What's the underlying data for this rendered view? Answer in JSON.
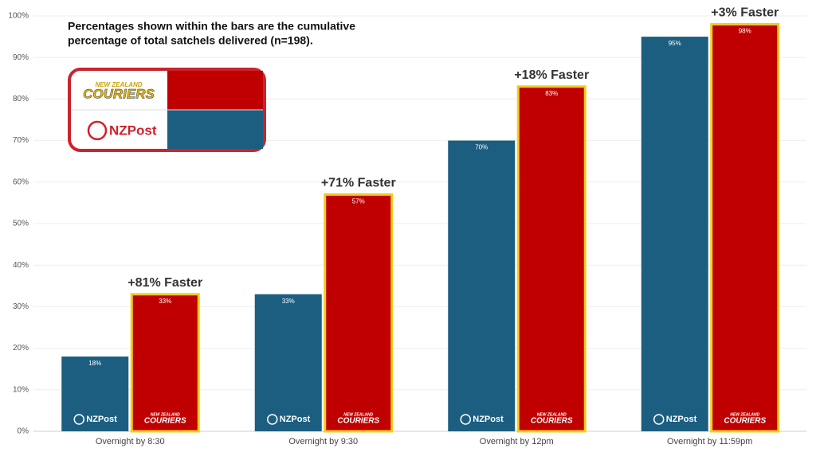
{
  "chart_data": {
    "type": "bar",
    "note": [
      "Percentages shown within the bars are the cumulative",
      "percentage of total satchels delivered (n=198)."
    ],
    "logo_tagline": "NEW ZEALAND",
    "categories": [
      "Overnight by 8:30",
      "Overnight by 9:30",
      "Overnight by 12pm",
      "Overnight by 11:59pm"
    ],
    "series": [
      {
        "name": "NZPost",
        "color": "#1b5e80",
        "values": [
          18,
          33,
          70,
          95
        ],
        "value_labels": [
          "18%",
          "33%",
          "70%",
          "95%"
        ]
      },
      {
        "name": "COURIERS",
        "color": "#c00000",
        "values": [
          33,
          57,
          83,
          98
        ],
        "value_labels": [
          "33%",
          "57%",
          "83%",
          "98%"
        ]
      }
    ],
    "annotations": [
      "+81% Faster",
      "+71% Faster",
      "+18% Faster",
      "+3% Faster"
    ],
    "ylim": [
      0,
      100
    ],
    "yticks": [
      {
        "value": 0,
        "label": "0%"
      },
      {
        "value": 10,
        "label": "10%"
      },
      {
        "value": 20,
        "label": "20%"
      },
      {
        "value": 30,
        "label": "30%"
      },
      {
        "value": 40,
        "label": "40%"
      },
      {
        "value": 50,
        "label": "50%"
      },
      {
        "value": 60,
        "label": "60%"
      },
      {
        "value": 70,
        "label": "70%"
      },
      {
        "value": 80,
        "label": "80%"
      },
      {
        "value": 90,
        "label": "90%"
      },
      {
        "value": 100,
        "label": "100%"
      }
    ],
    "grid": true
  }
}
